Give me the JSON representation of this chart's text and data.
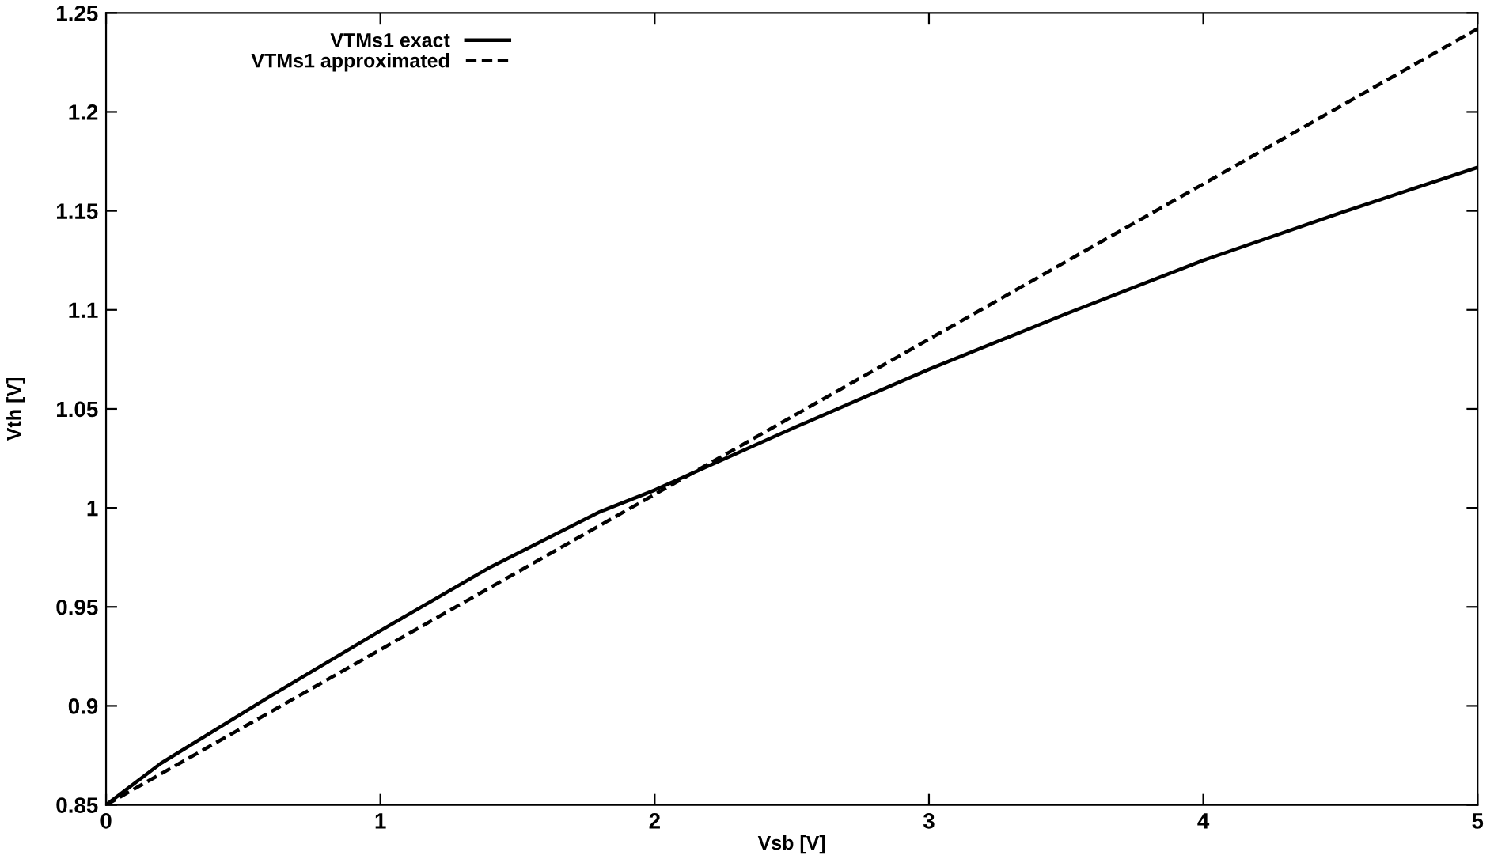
{
  "chart_data": {
    "type": "line",
    "xlabel": "Vsb [V]",
    "ylabel": "Vth [V]",
    "xlim": [
      0,
      5
    ],
    "xticks": [
      0,
      1,
      2,
      3,
      4,
      5
    ],
    "ylim": [
      0.85,
      1.25
    ],
    "yticks": [
      0.85,
      0.9,
      0.95,
      1,
      1.05,
      1.1,
      1.15,
      1.2,
      1.25
    ],
    "grid": false,
    "legend": "top left",
    "series": [
      {
        "name": "VTMs1 exact",
        "color": "#000000",
        "line_style": "solid",
        "x": [
          0,
          0.2,
          0.6,
          1,
          1.4,
          1.8,
          2,
          2.5,
          3,
          3.5,
          4,
          4.5,
          5
        ],
        "values": [
          0.85,
          0.871,
          0.905,
          0.938,
          0.97,
          0.998,
          1.009,
          1.04,
          1.07,
          1.098,
          1.125,
          1.149,
          1.172
        ]
      },
      {
        "name": "VTMs1 approximated",
        "color": "#000000",
        "line_style": "dashed",
        "x": [
          0,
          5
        ],
        "values": [
          0.85,
          1.242
        ]
      }
    ]
  }
}
